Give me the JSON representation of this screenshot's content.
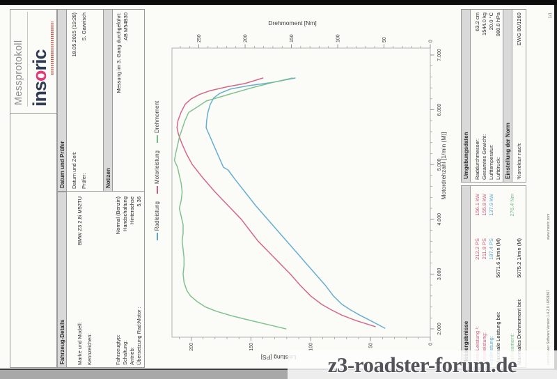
{
  "header": {
    "doc_type": "Messprotokoll",
    "logo": {
      "prefix": "ins",
      "o": "o",
      "suffix": "ric"
    }
  },
  "vehicle_details": {
    "section_title": "Fahrzeug-Details",
    "rows": [
      {
        "label": "Marke und Modell:",
        "value": "BMW Z3 2.8i M52TU"
      },
      {
        "label": "Kennzeichen:",
        "value": ""
      },
      {
        "label": "Fahrzeugtyp:",
        "value": "Normal (Benzin)"
      },
      {
        "label": "Schaltung:",
        "value": "Handschaltung"
      },
      {
        "label": "Antrieb:",
        "value": "Hinterachse"
      },
      {
        "label": "Übersetzung Rad:Motor :",
        "value": "5,36"
      }
    ]
  },
  "datum_pruefer": {
    "section_title": "Datum und Prüfer",
    "rows": [
      {
        "label": "Datum und Zeit:",
        "value": "18.05.2015 (19:28)"
      },
      {
        "label": "Prüfer:",
        "value": "S. Gawrisch"
      }
    ]
  },
  "notizen": {
    "section_title": "Notizen",
    "lines": [
      "Messung im 3. Gang durchgeführt:",
      "AB M54B30"
    ]
  },
  "chart_data": {
    "type": "line",
    "title": "",
    "xlabel": "Motordrehzahl [1/min (M)]",
    "ylabel_left": "Leistung [PS]",
    "ylabel_right": "Drehmoment [Nm]",
    "grid": false,
    "legend_position": "top",
    "xlim": [
      1847,
      7127
    ],
    "ylim_left": [
      0,
      216
    ],
    "ylim_right": [
      0,
      279
    ],
    "x_ticks": [
      2000,
      3000,
      4000,
      5000,
      6000,
      7000
    ],
    "x_tick_labels": [
      "2.000",
      "3.000",
      "4.000",
      "5.000",
      "6.000",
      "7.000"
    ],
    "x_minor_step": 200,
    "left_ticks": [
      0,
      50,
      100,
      150,
      200
    ],
    "right_ticks": [
      0,
      50,
      100,
      150,
      200,
      250
    ],
    "y_minor_step": 10,
    "series": [
      {
        "name": "Radleistung",
        "axis": "left",
        "unit": "PS",
        "color": "#5aa7cd",
        "points": [
          [
            2012,
            38
          ],
          [
            2150,
            50
          ],
          [
            2250,
            59
          ],
          [
            2350,
            67
          ],
          [
            2450,
            74
          ],
          [
            2600,
            81
          ],
          [
            2800,
            88
          ],
          [
            3000,
            96
          ],
          [
            3200,
            104
          ],
          [
            3400,
            112
          ],
          [
            3600,
            120
          ],
          [
            3800,
            128
          ],
          [
            4000,
            136
          ],
          [
            4250,
            146
          ],
          [
            4500,
            155
          ],
          [
            4750,
            164
          ],
          [
            4900,
            169
          ],
          [
            4950,
            173
          ],
          [
            5100,
            176
          ],
          [
            5300,
            180
          ],
          [
            5500,
            184
          ],
          [
            5671,
            187.4
          ],
          [
            5800,
            187
          ],
          [
            5950,
            186
          ],
          [
            6100,
            184
          ],
          [
            6220,
            181
          ],
          [
            6300,
            176
          ],
          [
            6380,
            167
          ],
          [
            6440,
            152
          ],
          [
            6500,
            132
          ],
          [
            6580,
            113
          ]
        ]
      },
      {
        "name": "Motorleistung",
        "axis": "left",
        "unit": "PS",
        "color": "#d05a80",
        "points": [
          [
            2040,
            46
          ],
          [
            2150,
            62
          ],
          [
            2250,
            74
          ],
          [
            2350,
            83
          ],
          [
            2450,
            91
          ],
          [
            2600,
            100
          ],
          [
            2800,
            109
          ],
          [
            3000,
            117
          ],
          [
            3200,
            126
          ],
          [
            3400,
            135
          ],
          [
            3600,
            144
          ],
          [
            3800,
            151
          ],
          [
            4000,
            158
          ],
          [
            4250,
            169
          ],
          [
            4500,
            180
          ],
          [
            4750,
            190
          ],
          [
            5000,
            199
          ],
          [
            5200,
            204
          ],
          [
            5400,
            208
          ],
          [
            5550,
            210.5
          ],
          [
            5671,
            211.8
          ],
          [
            5800,
            211
          ],
          [
            5950,
            208.5
          ],
          [
            6100,
            205
          ],
          [
            6200,
            200
          ],
          [
            6280,
            193
          ],
          [
            6350,
            184
          ],
          [
            6420,
            170
          ],
          [
            6480,
            155
          ],
          [
            6580,
            140
          ]
        ]
      },
      {
        "name": "Drehmoment",
        "axis": "right",
        "unit": "Nm",
        "color": "#76bd85",
        "points": [
          [
            2000,
            156
          ],
          [
            2080,
            176
          ],
          [
            2160,
            196
          ],
          [
            2240,
            215
          ],
          [
            2320,
            231
          ],
          [
            2400,
            243
          ],
          [
            2500,
            252
          ],
          [
            2600,
            259
          ],
          [
            2700,
            263
          ],
          [
            2850,
            266
          ],
          [
            3000,
            267
          ],
          [
            3150,
            266
          ],
          [
            3300,
            266
          ],
          [
            3450,
            267
          ],
          [
            3600,
            268
          ],
          [
            3750,
            267
          ],
          [
            3900,
            267
          ],
          [
            4050,
            269
          ],
          [
            4200,
            271
          ],
          [
            4350,
            269
          ],
          [
            4500,
            268
          ],
          [
            4650,
            269
          ],
          [
            4800,
            271
          ],
          [
            4950,
            273
          ],
          [
            5075,
            276.4
          ],
          [
            5200,
            275
          ],
          [
            5350,
            273
          ],
          [
            5500,
            271
          ],
          [
            5650,
            268
          ],
          [
            5800,
            265
          ],
          [
            5950,
            261
          ],
          [
            6080,
            249
          ],
          [
            6160,
            242
          ],
          [
            6280,
            218
          ],
          [
            6400,
            193
          ],
          [
            6500,
            170
          ],
          [
            6580,
            149
          ]
        ]
      }
    ]
  },
  "messergebnisse": {
    "section_title": "Messergebnisse",
    "rows": [
      {
        "label": "Norm-Leistung ¹:",
        "color": "#d05a80",
        "col2": "212.2 PS",
        "col3": "156.1 kW"
      },
      {
        "label": "Motorleistung:",
        "color": "#d05a80",
        "col2": "211.8 PS",
        "col3": "155.8 kW"
      },
      {
        "label": "Radleistung:",
        "color": "#5aa7cd",
        "col2": "187.4 PS",
        "col3": "137.9 kW"
      },
      {
        "label": "Maximale Leistung bei:",
        "color": "#1f1f1f",
        "col2": "5671.6 1/min (M)",
        "col3": ""
      },
      {
        "label": "Drehmoment:",
        "color": "#76bd85",
        "col2": "",
        "col3": "276.4 Nm"
      },
      {
        "label": "Maximales Drehmoment bei:",
        "color": "#1f1f1f",
        "col2": "5075.2 1/min (M)",
        "col3": ""
      }
    ]
  },
  "umgebungsdaten": {
    "section_title": "Umgebungsdaten",
    "rows": [
      {
        "label": "Raddurchmesser:",
        "value": "63.2 cm"
      },
      {
        "label": "Gesamtes Gewicht:",
        "value": "1544.0 kg"
      },
      {
        "label": "Lufttemperatur:",
        "value": "20.0 °C"
      },
      {
        "label": "Luftdruck:",
        "value": "980.0 hPa"
      }
    ]
  },
  "einstellung_norm": {
    "section_title": "Einstellung der Norm",
    "rows": [
      {
        "label": "¹Korrektur nach:",
        "value": "EWG 80/1269"
      }
    ]
  },
  "footer": {
    "left": "insoricPower Software Version 1.4.2.0 / 6891867",
    "center": "www.insoric.com",
    "page_number": "1/1"
  },
  "watermark": {
    "text": "z3-roadster-forum.de"
  },
  "colors": {
    "radleistung": "#5aa7cd",
    "motorleistung": "#d05a80",
    "drehmoment": "#76bd85",
    "band_grey": "#d9d9d9",
    "logo_navy": "#313c54",
    "logo_pink": "#e23a78"
  }
}
